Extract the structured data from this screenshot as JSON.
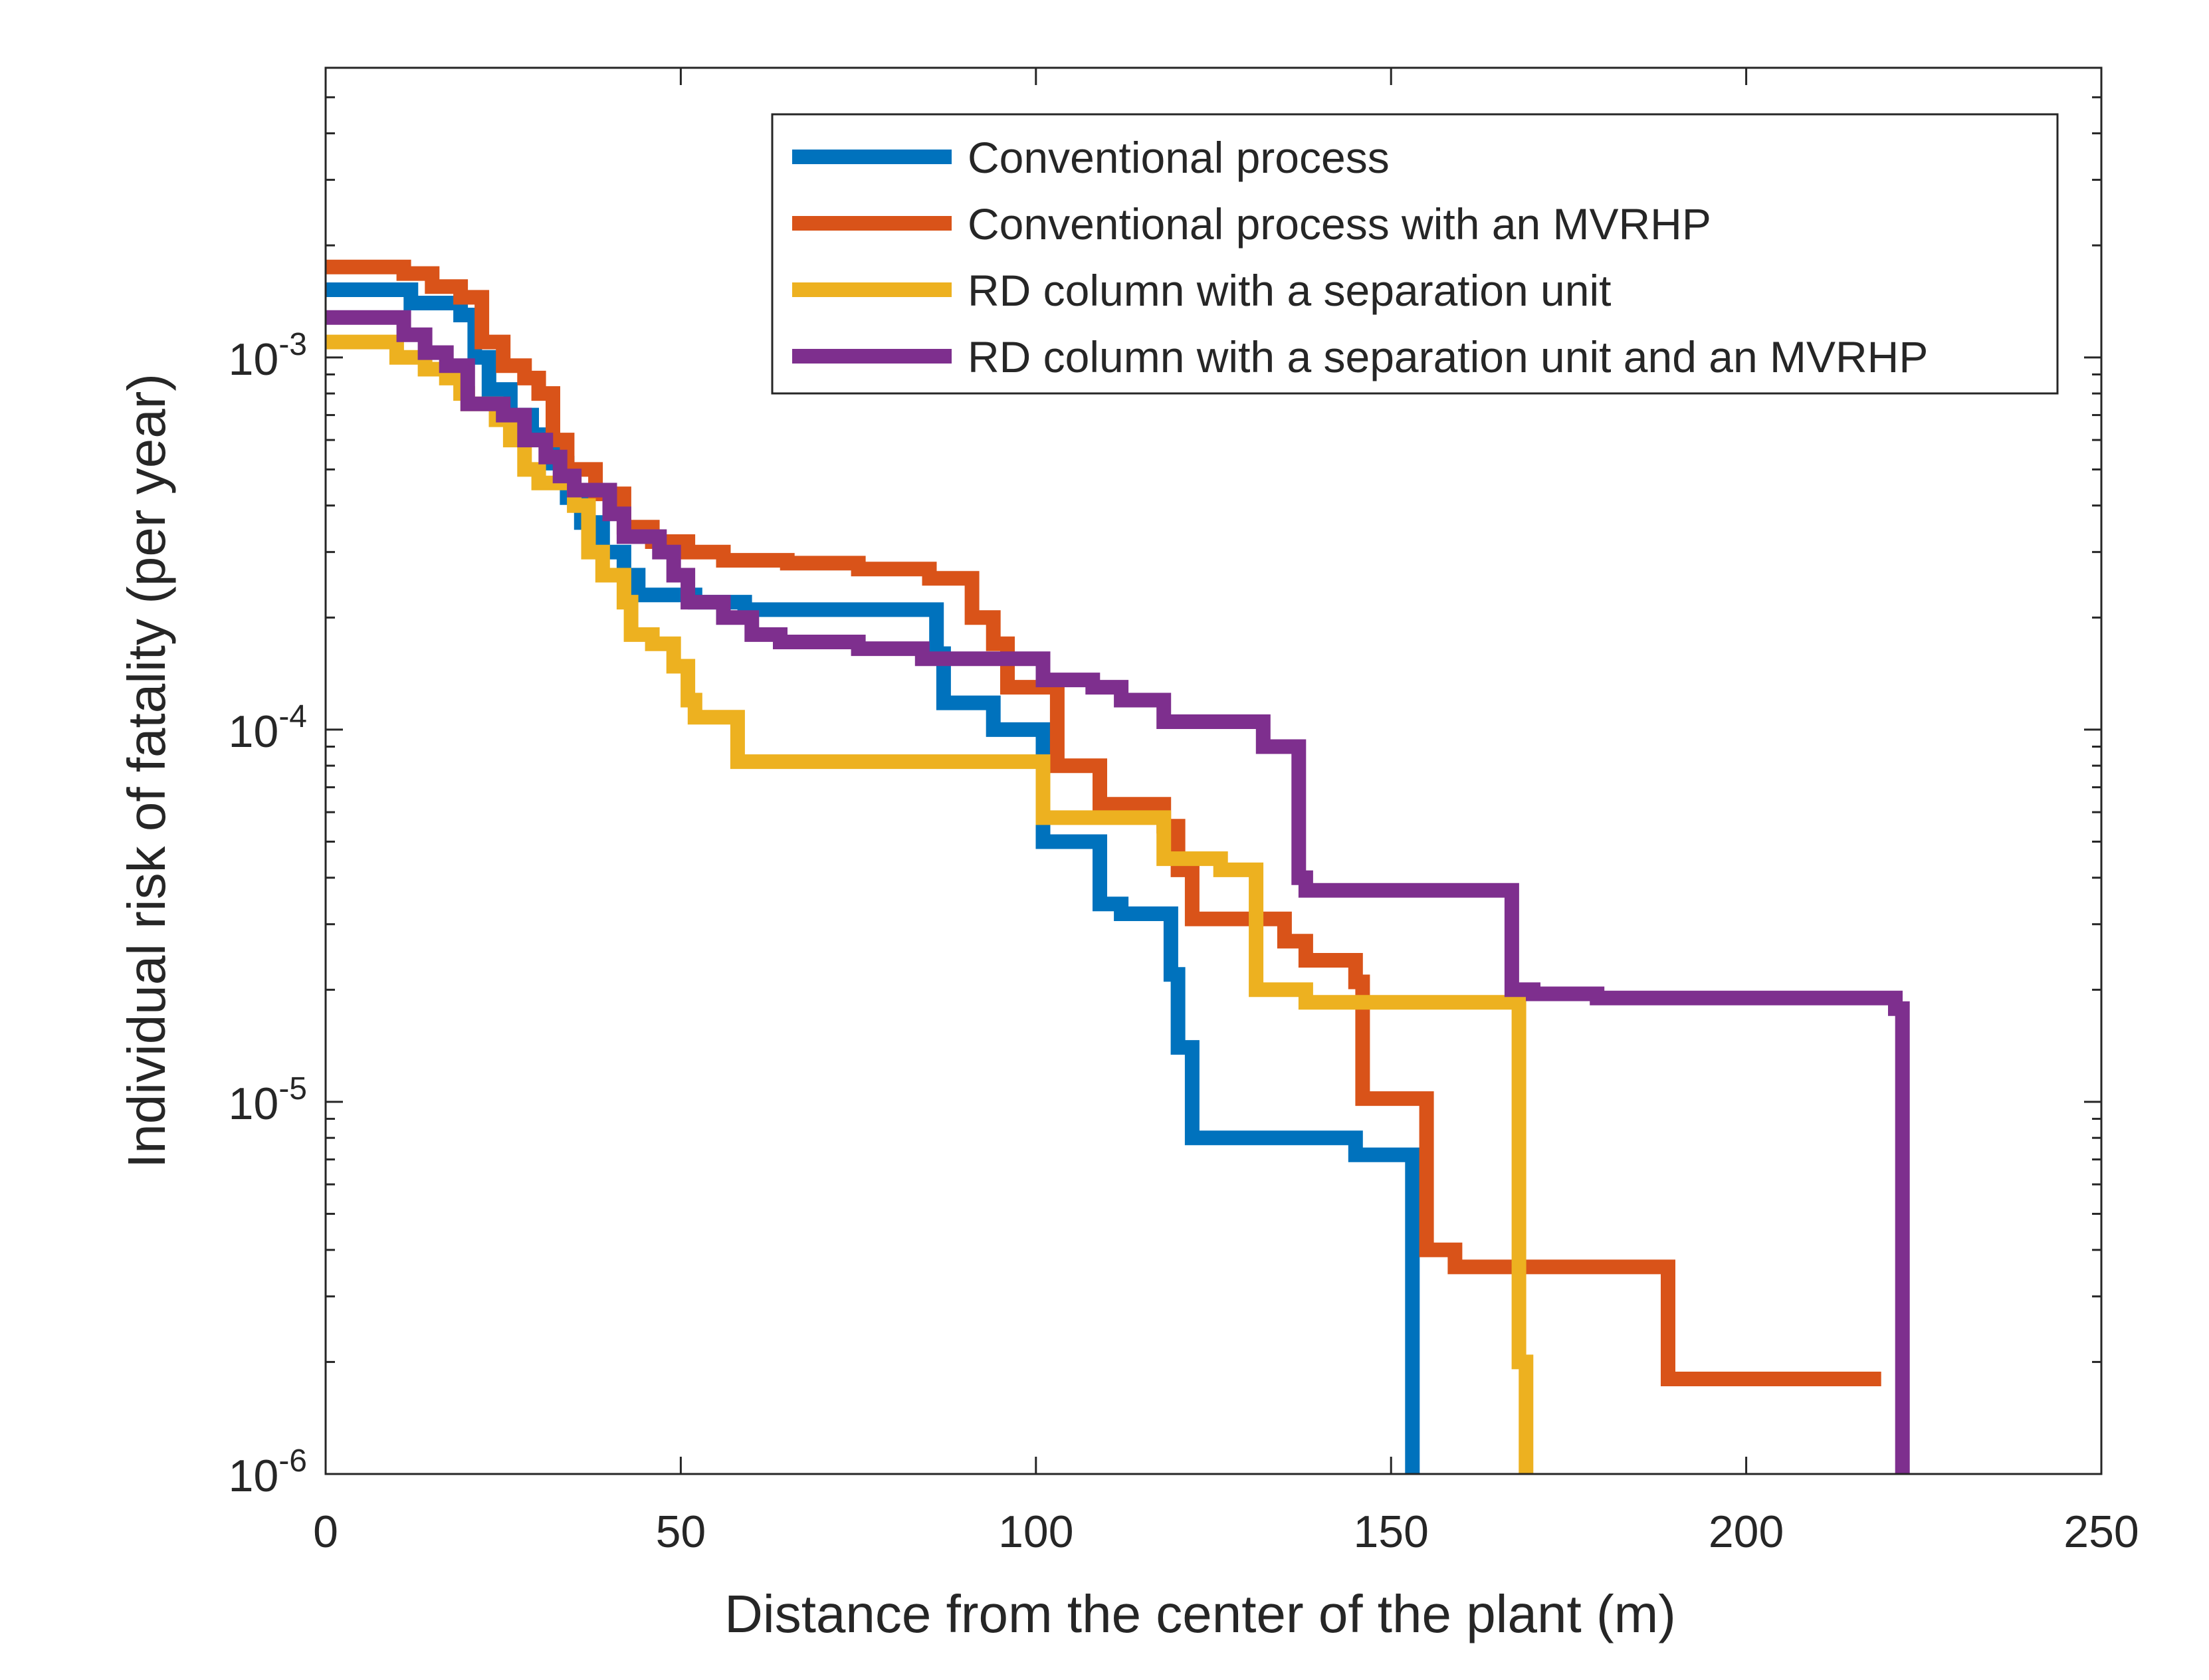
{
  "chart_data": {
    "type": "line",
    "title": "",
    "xlabel": "Distance from the center of the plant (m)",
    "ylabel": "Individual risk of fatality (per year)",
    "xlim": [
      0,
      250
    ],
    "ylim": [
      1e-06,
      0.006
    ],
    "yscale": "log",
    "xticks": [
      0,
      50,
      100,
      150,
      200,
      250
    ],
    "xtick_labels": [
      "0",
      "50",
      "100",
      "150",
      "200",
      "250"
    ],
    "yticks": [
      1e-06,
      1e-05,
      0.0001,
      0.001
    ],
    "ytick_labels": [
      {
        "base": "10",
        "exp": "-6"
      },
      {
        "base": "10",
        "exp": "-5"
      },
      {
        "base": "10",
        "exp": "-4"
      },
      {
        "base": "10",
        "exp": "-3"
      }
    ],
    "grid": false,
    "legend_position": "top-right",
    "series": [
      {
        "name": "Conventional process",
        "color": "#0072BD",
        "points": [
          [
            0,
            0.00152
          ],
          [
            12,
            0.00152
          ],
          [
            12,
            0.0014
          ],
          [
            19,
            0.0014
          ],
          [
            19,
            0.0013
          ],
          [
            21,
            0.0013
          ],
          [
            21,
            0.001
          ],
          [
            23,
            0.001
          ],
          [
            23,
            0.00082
          ],
          [
            26,
            0.00082
          ],
          [
            26,
            0.0007
          ],
          [
            29,
            0.0007
          ],
          [
            29,
            0.00062
          ],
          [
            32,
            0.00062
          ],
          [
            32,
            0.00052
          ],
          [
            34,
            0.00052
          ],
          [
            34,
            0.00042
          ],
          [
            36,
            0.00042
          ],
          [
            36,
            0.00036
          ],
          [
            39,
            0.00036
          ],
          [
            39,
            0.0003
          ],
          [
            42,
            0.0003
          ],
          [
            42,
            0.00026
          ],
          [
            44,
            0.00026
          ],
          [
            44,
            0.00023
          ],
          [
            52,
            0.00023
          ],
          [
            52,
            0.00022
          ],
          [
            59,
            0.00022
          ],
          [
            59,
            0.00021
          ],
          [
            86,
            0.00021
          ],
          [
            86,
            0.00016
          ],
          [
            87,
            0.00016
          ],
          [
            87,
            0.000118
          ],
          [
            94,
            0.000118
          ],
          [
            94,
            0.0001
          ],
          [
            101,
            0.0001
          ],
          [
            101,
            5e-05
          ],
          [
            109,
            5e-05
          ],
          [
            109,
            3.4e-05
          ],
          [
            112,
            3.4e-05
          ],
          [
            112,
            3.2e-05
          ],
          [
            119,
            3.2e-05
          ],
          [
            119,
            2.2e-05
          ],
          [
            120,
            2.2e-05
          ],
          [
            120,
            1.4e-05
          ],
          [
            122,
            1.4e-05
          ],
          [
            122,
            8e-06
          ],
          [
            145,
            8e-06
          ],
          [
            145,
            7.2e-06
          ],
          [
            153,
            7.2e-06
          ],
          [
            153,
            1e-06
          ]
        ]
      },
      {
        "name": "Conventional process with an MVRHP",
        "color": "#D95319",
        "points": [
          [
            0,
            0.00175
          ],
          [
            11,
            0.00175
          ],
          [
            11,
            0.00168
          ],
          [
            15,
            0.00168
          ],
          [
            15,
            0.00155
          ],
          [
            19,
            0.00155
          ],
          [
            19,
            0.00145
          ],
          [
            22,
            0.00145
          ],
          [
            22,
            0.0011
          ],
          [
            25,
            0.0011
          ],
          [
            25,
            0.00095
          ],
          [
            28,
            0.00095
          ],
          [
            28,
            0.00088
          ],
          [
            30,
            0.00088
          ],
          [
            30,
            0.0008
          ],
          [
            32,
            0.0008
          ],
          [
            32,
            0.0006
          ],
          [
            34,
            0.0006
          ],
          [
            34,
            0.0005
          ],
          [
            38,
            0.0005
          ],
          [
            38,
            0.00043
          ],
          [
            42,
            0.00043
          ],
          [
            42,
            0.00035
          ],
          [
            46,
            0.00035
          ],
          [
            46,
            0.00032
          ],
          [
            51,
            0.00032
          ],
          [
            51,
            0.0003
          ],
          [
            56,
            0.0003
          ],
          [
            56,
            0.000285
          ],
          [
            65,
            0.000285
          ],
          [
            65,
            0.00028
          ],
          [
            75,
            0.00028
          ],
          [
            75,
            0.00027
          ],
          [
            85,
            0.00027
          ],
          [
            85,
            0.000255
          ],
          [
            91,
            0.000255
          ],
          [
            91,
            0.0002
          ],
          [
            94,
            0.0002
          ],
          [
            94,
            0.00017
          ],
          [
            96,
            0.00017
          ],
          [
            96,
            0.00013
          ],
          [
            103,
            0.00013
          ],
          [
            103,
            8e-05
          ],
          [
            109,
            8e-05
          ],
          [
            109,
            6.3e-05
          ],
          [
            118,
            6.3e-05
          ],
          [
            118,
            5.5e-05
          ],
          [
            120,
            5.5e-05
          ],
          [
            120,
            4.2e-05
          ],
          [
            122,
            4.2e-05
          ],
          [
            122,
            3.1e-05
          ],
          [
            135,
            3.1e-05
          ],
          [
            135,
            2.7e-05
          ],
          [
            138,
            2.7e-05
          ],
          [
            138,
            2.4e-05
          ],
          [
            145,
            2.4e-05
          ],
          [
            145,
            2.1e-05
          ],
          [
            146,
            2.1e-05
          ],
          [
            146,
            1.02e-05
          ],
          [
            155,
            1.02e-05
          ],
          [
            155,
            4e-06
          ],
          [
            159,
            4e-06
          ],
          [
            159,
            3.6e-06
          ],
          [
            189,
            3.6e-06
          ],
          [
            189,
            1.8e-06
          ],
          [
            219,
            1.8e-06
          ]
        ]
      },
      {
        "name": "RD column with a separation unit",
        "color": "#EDB120",
        "points": [
          [
            0,
            0.0011
          ],
          [
            10,
            0.0011
          ],
          [
            10,
            0.001
          ],
          [
            14,
            0.001
          ],
          [
            14,
            0.00093
          ],
          [
            17,
            0.00093
          ],
          [
            17,
            0.00088
          ],
          [
            19,
            0.00088
          ],
          [
            19,
            0.0008
          ],
          [
            20,
            0.0008
          ],
          [
            20,
            0.00075
          ],
          [
            24,
            0.00075
          ],
          [
            24,
            0.00068
          ],
          [
            26,
            0.00068
          ],
          [
            26,
            0.0006
          ],
          [
            28,
            0.0006
          ],
          [
            28,
            0.0005
          ],
          [
            30,
            0.0005
          ],
          [
            30,
            0.00046
          ],
          [
            35,
            0.00046
          ],
          [
            35,
            0.0004
          ],
          [
            37,
            0.0004
          ],
          [
            37,
            0.0003
          ],
          [
            39,
            0.0003
          ],
          [
            39,
            0.00026
          ],
          [
            42,
            0.00026
          ],
          [
            42,
            0.00022
          ],
          [
            43,
            0.00022
          ],
          [
            43,
            0.00018
          ],
          [
            46,
            0.00018
          ],
          [
            46,
            0.00017
          ],
          [
            49,
            0.00017
          ],
          [
            49,
            0.000148
          ],
          [
            51,
            0.000148
          ],
          [
            51,
            0.00012
          ],
          [
            52,
            0.00012
          ],
          [
            52,
            0.000108
          ],
          [
            58,
            0.000108
          ],
          [
            58,
            8.2e-05
          ],
          [
            101,
            8.2e-05
          ],
          [
            101,
            5.8e-05
          ],
          [
            118,
            5.8e-05
          ],
          [
            118,
            4.5e-05
          ],
          [
            126,
            4.5e-05
          ],
          [
            126,
            4.2e-05
          ],
          [
            131,
            4.2e-05
          ],
          [
            131,
            2e-05
          ],
          [
            138,
            2e-05
          ],
          [
            138,
            1.85e-05
          ],
          [
            168,
            1.85e-05
          ],
          [
            168,
            2e-06
          ],
          [
            169,
            2e-06
          ],
          [
            169,
            1e-06
          ]
        ]
      },
      {
        "name": "RD column with a separation unit and an MVRHP",
        "color": "#7E2F8E",
        "points": [
          [
            0,
            0.00128
          ],
          [
            11,
            0.00128
          ],
          [
            11,
            0.00115
          ],
          [
            14,
            0.00115
          ],
          [
            14,
            0.00103
          ],
          [
            17,
            0.00103
          ],
          [
            17,
            0.00095
          ],
          [
            20,
            0.00095
          ],
          [
            20,
            0.00075
          ],
          [
            25,
            0.00075
          ],
          [
            25,
            0.0007
          ],
          [
            28,
            0.0007
          ],
          [
            28,
            0.0006
          ],
          [
            31,
            0.0006
          ],
          [
            31,
            0.00054
          ],
          [
            33,
            0.00054
          ],
          [
            33,
            0.00048
          ],
          [
            35,
            0.00048
          ],
          [
            35,
            0.00044
          ],
          [
            40,
            0.00044
          ],
          [
            40,
            0.00038
          ],
          [
            42,
            0.00038
          ],
          [
            42,
            0.00033
          ],
          [
            47,
            0.00033
          ],
          [
            47,
            0.0003
          ],
          [
            49,
            0.0003
          ],
          [
            49,
            0.00026
          ],
          [
            51,
            0.00026
          ],
          [
            51,
            0.00022
          ],
          [
            56,
            0.00022
          ],
          [
            56,
            0.0002
          ],
          [
            60,
            0.0002
          ],
          [
            60,
            0.00018
          ],
          [
            64,
            0.00018
          ],
          [
            64,
            0.000172
          ],
          [
            75,
            0.000172
          ],
          [
            75,
            0.000165
          ],
          [
            84,
            0.000165
          ],
          [
            84,
            0.000155
          ],
          [
            101,
            0.000155
          ],
          [
            101,
            0.000136
          ],
          [
            108,
            0.000136
          ],
          [
            108,
            0.00013
          ],
          [
            112,
            0.00013
          ],
          [
            112,
            0.00012
          ],
          [
            118,
            0.00012
          ],
          [
            118,
            0.000105
          ],
          [
            132,
            0.000105
          ],
          [
            132,
            9e-05
          ],
          [
            137,
            9e-05
          ],
          [
            137,
            4e-05
          ],
          [
            138,
            4e-05
          ],
          [
            138,
            3.7e-05
          ],
          [
            167,
            3.7e-05
          ],
          [
            167,
            2e-05
          ],
          [
            170,
            2e-05
          ],
          [
            170,
            1.95e-05
          ],
          [
            179,
            1.95e-05
          ],
          [
            179,
            1.9e-05
          ],
          [
            221,
            1.9e-05
          ],
          [
            221,
            1.78e-05
          ],
          [
            222,
            1.78e-05
          ],
          [
            222,
            1e-06
          ]
        ]
      }
    ]
  }
}
